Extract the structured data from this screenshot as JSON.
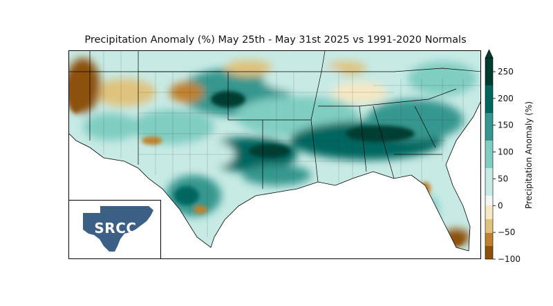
{
  "title": "Precipitation Anomaly (%) May 25th - May 31st 2025 vs 1991-2020 Normals",
  "colorbar": {
    "label": "Precipitation Anomaly (%)",
    "ticks": [
      "250",
      "200",
      "150",
      "100",
      "50",
      "0",
      "−50",
      "−100"
    ],
    "min": -100,
    "max": 275,
    "extend": "max",
    "colors": {
      "dry_strong": "#8c510a",
      "dry": "#bf812d",
      "dry_light": "#dfc27d",
      "neutral": "#f6e8c3",
      "wet_light": "#c7eae5",
      "wet": "#80cdc1",
      "wet_mid": "#35978f",
      "wet_strong": "#01665e",
      "wet_max": "#003c30"
    }
  },
  "logo": {
    "text": "SRCC",
    "color": "#3b5f85"
  }
}
